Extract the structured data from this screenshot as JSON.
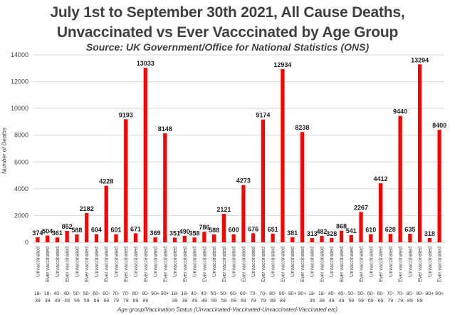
{
  "chart_data": {
    "type": "bar",
    "title": "July 1st to September 30th 2021, All Cause Deaths,",
    "title_line2": "Unvaccinated vs Ever Vacccinated by Age Group",
    "subtitle": "Source: UK Government/Office for National Statistics (ONS)",
    "xlabel": "Age group/Vaccination Status (Unvaccinated-Vaccinated-Unvaccinated-Vaccinated etc)",
    "ylabel": "Number of Deaths",
    "ylim": [
      0,
      14000
    ],
    "yticks": [
      "0",
      "2000",
      "4000",
      "6000",
      "8000",
      "10000",
      "12000",
      "14000"
    ],
    "grid": true,
    "bar_color": "#ff0000",
    "categories": [
      {
        "status": "Unvaccinated",
        "age": "18-39"
      },
      {
        "status": "Ever vaccinated",
        "age": "18-39"
      },
      {
        "status": "Unvaccinated",
        "age": "40-49"
      },
      {
        "status": "Ever vaccinated",
        "age": "40-49"
      },
      {
        "status": "Unvaccinated",
        "age": "50-59"
      },
      {
        "status": "Ever vaccinated",
        "age": "50-59"
      },
      {
        "status": "Unvaccinated",
        "age": "60-69"
      },
      {
        "status": "Ever vaccinated",
        "age": "60-69"
      },
      {
        "status": "Unvaccinated",
        "age": "70-79"
      },
      {
        "status": "Ever vaccinated",
        "age": "70-79"
      },
      {
        "status": "Unvaccinated",
        "age": "80-89"
      },
      {
        "status": "Ever vaccinated",
        "age": "80-89"
      },
      {
        "status": "Unvaccinated",
        "age": "90+"
      },
      {
        "status": "Ever vaccinated",
        "age": "90+"
      },
      {
        "status": "Unvaccinated",
        "age": "18-39"
      },
      {
        "status": "Ever vaccinated",
        "age": "18-39"
      },
      {
        "status": "Unvaccinated",
        "age": "40-49"
      },
      {
        "status": "Ever vaccinated",
        "age": "40-49"
      },
      {
        "status": "Unvaccinated",
        "age": "50-59"
      },
      {
        "status": "Ever vaccinated",
        "age": "50-59"
      },
      {
        "status": "Unvaccinated",
        "age": "60-69"
      },
      {
        "status": "Ever vaccinated",
        "age": "60-69"
      },
      {
        "status": "Unvaccinated",
        "age": "70-79"
      },
      {
        "status": "Ever vaccinated",
        "age": "70-79"
      },
      {
        "status": "Unvaccinated",
        "age": "80-89"
      },
      {
        "status": "Ever vaccinated",
        "age": "80-89"
      },
      {
        "status": "Unvaccinated",
        "age": "90+"
      },
      {
        "status": "Ever vaccinated",
        "age": "90+"
      },
      {
        "status": "Unvaccinated",
        "age": "18-39"
      },
      {
        "status": "Ever vaccinated",
        "age": "18-39"
      },
      {
        "status": "Unvaccinated",
        "age": "40-49"
      },
      {
        "status": "Ever vaccinated",
        "age": "40-49"
      },
      {
        "status": "Unvaccinated",
        "age": "50-59"
      },
      {
        "status": "Ever vaccinated",
        "age": "50-59"
      },
      {
        "status": "Unvaccinated",
        "age": "60-69"
      },
      {
        "status": "Ever vaccinated",
        "age": "60-69"
      },
      {
        "status": "Unvaccinated",
        "age": "70-79"
      },
      {
        "status": "Ever vaccinated",
        "age": "70-79"
      },
      {
        "status": "Unvaccinated",
        "age": "80-89"
      },
      {
        "status": "Ever vaccinated",
        "age": "80-89"
      },
      {
        "status": "Unvaccinated",
        "age": "90+"
      },
      {
        "status": "Ever vaccinated",
        "age": "90+"
      }
    ],
    "values": [
      374,
      504,
      361,
      852,
      588,
      2182,
      604,
      4228,
      601,
      9193,
      671,
      13033,
      369,
      8148,
      351,
      490,
      358,
      786,
      588,
      2121,
      600,
      4273,
      676,
      9174,
      651,
      12934,
      381,
      8238,
      313,
      482,
      328,
      868,
      541,
      2267,
      610,
      4412,
      628,
      9440,
      635,
      13294,
      318,
      8400
    ]
  }
}
